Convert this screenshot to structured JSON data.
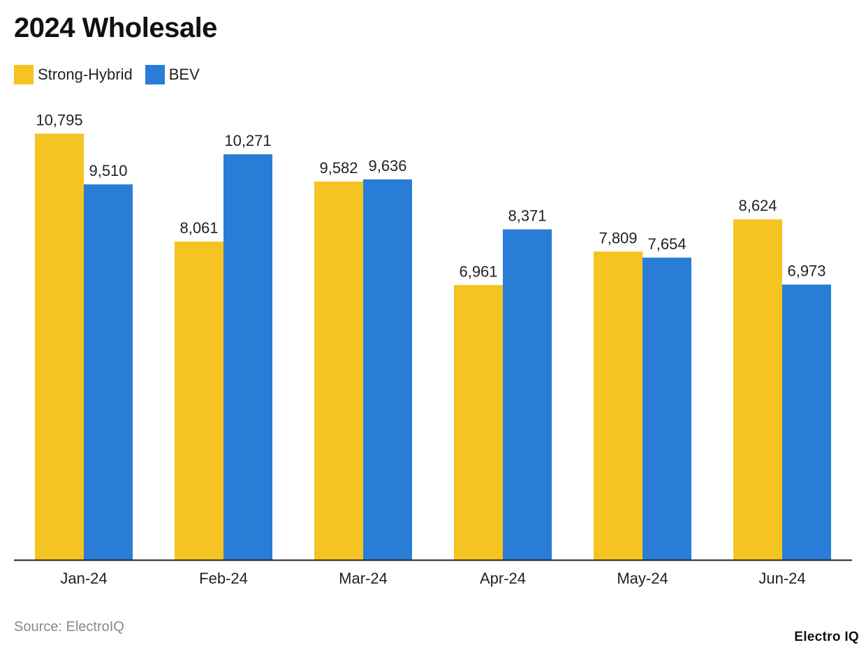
{
  "title": "2024 Wholesale",
  "source": "Source: ElectroIQ",
  "brand": "Electro IQ",
  "colors": {
    "strong_hybrid": "#F5C423",
    "bev": "#2A7DD6",
    "axis": "#222222"
  },
  "chart_data": {
    "type": "bar",
    "title": "2024 Wholesale",
    "xlabel": "",
    "ylabel": "",
    "ylim": [
      0,
      12500
    ],
    "grid": false,
    "legend_position": "top-left",
    "categories": [
      "Jan-24",
      "Feb-24",
      "Mar-24",
      "Apr-24",
      "May-24",
      "Jun-24"
    ],
    "series": [
      {
        "name": "Strong-Hybrid",
        "color": "#F5C423",
        "values": [
          10795,
          8061,
          9582,
          6961,
          7809,
          8624
        ],
        "labels": [
          "10,795",
          "8,061",
          "9,582",
          "6,961",
          "7,809",
          "8,624"
        ]
      },
      {
        "name": "BEV",
        "color": "#2A7DD6",
        "values": [
          9510,
          10271,
          9636,
          8371,
          7654,
          6973
        ],
        "labels": [
          "9,510",
          "10,271",
          "9,636",
          "8,371",
          "7,654",
          "6,973"
        ]
      }
    ]
  }
}
